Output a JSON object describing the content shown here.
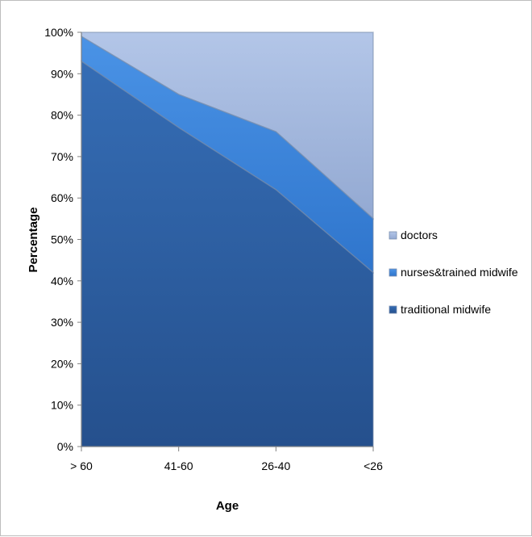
{
  "chart_data": {
    "type": "area",
    "stacked": "percent",
    "categories": [
      "> 60",
      "41-60",
      "26-40",
      "<26"
    ],
    "series": [
      {
        "name": "traditional midwife",
        "values": [
          93,
          77,
          62,
          42
        ]
      },
      {
        "name": "nurses&trained midwife",
        "values": [
          6,
          8,
          14,
          13
        ]
      },
      {
        "name": "doctors",
        "values": [
          1,
          15,
          24,
          45
        ]
      }
    ],
    "colors": {
      "traditional midwife": "#2f63a8",
      "nurses&trained midwife": "#3a82d8",
      "doctors": "#a9bde0"
    },
    "yticks": [
      "0%",
      "10%",
      "20%",
      "30%",
      "40%",
      "50%",
      "60%",
      "70%",
      "80%",
      "90%",
      "100%"
    ],
    "ylim": [
      0,
      100
    ],
    "xlabel": "Age",
    "ylabel": "Percentage",
    "legend_position": "right",
    "grid": false
  }
}
